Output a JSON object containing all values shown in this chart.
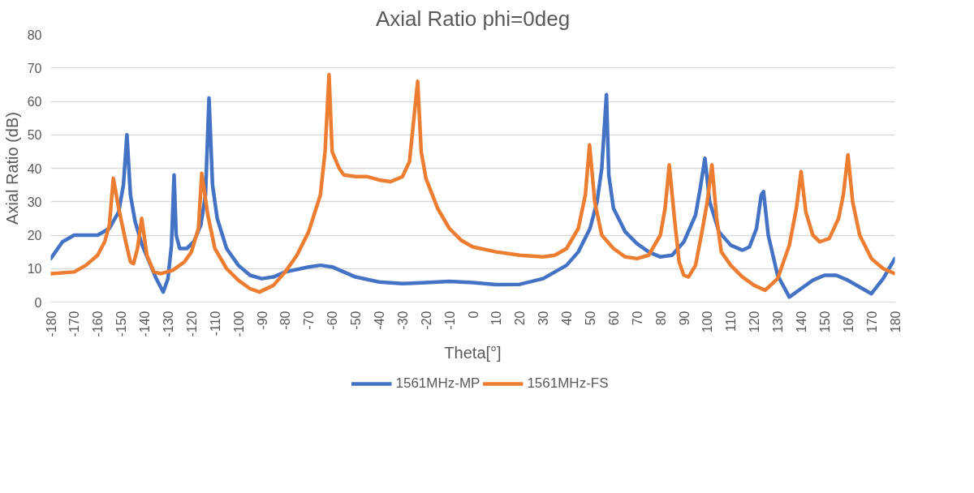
{
  "chart_data": {
    "type": "line",
    "title": "Axial Ratio phi=0deg",
    "xlabel": "Theta[°]",
    "ylabel": "Axial Ratio (dB)",
    "xlim": [
      -180,
      180
    ],
    "ylim": [
      0,
      80
    ],
    "xticks": [
      -180,
      -170,
      -160,
      -150,
      -140,
      -130,
      -120,
      -110,
      -100,
      -90,
      -80,
      -70,
      -60,
      -50,
      -40,
      -30,
      -20,
      -10,
      0,
      10,
      20,
      30,
      40,
      50,
      60,
      70,
      80,
      90,
      100,
      110,
      120,
      130,
      140,
      150,
      160,
      170,
      180
    ],
    "yticks": [
      0,
      10,
      20,
      30,
      40,
      50,
      60,
      70,
      80
    ],
    "grid": "y",
    "legend": "bottom",
    "marker": "none",
    "line_style": "solid",
    "series": [
      {
        "name": "1561MHz-MP",
        "color": "#4472c4",
        "x": [
          -180,
          -175,
          -170,
          -165,
          -160,
          -155,
          -151,
          -149,
          -147.5,
          -146,
          -144,
          -141,
          -138,
          -135,
          -132,
          -130,
          -128.5,
          -127.4,
          -126.5,
          -125,
          -122,
          -119,
          -116,
          -114,
          -112.5,
          -111,
          -109,
          -105,
          -100,
          -95,
          -90,
          -85,
          -80,
          -70,
          -65,
          -60,
          -55,
          -50,
          -40,
          -30,
          -20,
          -10,
          0,
          10,
          20,
          30,
          40,
          45,
          50,
          53,
          55,
          57,
          58,
          60,
          65,
          70,
          75,
          80,
          85,
          90,
          95,
          97,
          99,
          101,
          105,
          110,
          115,
          118,
          121,
          123,
          124,
          126,
          130,
          135,
          140,
          145,
          150,
          155,
          160,
          165,
          170,
          175,
          180
        ],
        "values": [
          13,
          18,
          20,
          20,
          20,
          22,
          27,
          35,
          50,
          32,
          24,
          17,
          12,
          7,
          3,
          7,
          17,
          38,
          20,
          16,
          16,
          18,
          23,
          32,
          61,
          35,
          25,
          16,
          11,
          8,
          7,
          7.5,
          9,
          10.5,
          11,
          10.5,
          9,
          7.5,
          6,
          5.5,
          5.8,
          6.2,
          5.8,
          5.2,
          5.3,
          7,
          11,
          15,
          22,
          30,
          40,
          62,
          38,
          28,
          21,
          17.5,
          15,
          13.5,
          14,
          18,
          26,
          34,
          43,
          30,
          21,
          17,
          15.5,
          16.5,
          22,
          32,
          33,
          20,
          8,
          1.5,
          4,
          6.5,
          8,
          8,
          6.5,
          4.5,
          2.5,
          7,
          13
        ]
      },
      {
        "name": "1561MHz-FS",
        "color": "#ed7d31",
        "x": [
          -180,
          -170,
          -165,
          -160,
          -157,
          -155,
          -153.3,
          -151,
          -148,
          -146,
          -144.7,
          -143,
          -141.2,
          -139,
          -136,
          -133,
          -128,
          -123,
          -120,
          -117,
          -115.6,
          -113,
          -110,
          -105,
          -100,
          -95,
          -91,
          -85,
          -80,
          -75,
          -70,
          -65,
          -63,
          -61.3,
          -60,
          -57,
          -55,
          -50,
          -45,
          -40,
          -35,
          -30,
          -27,
          -23.5,
          -22,
          -20,
          -15,
          -10,
          -5,
          0,
          10,
          20,
          30,
          35,
          40,
          45,
          48,
          49.8,
          52,
          55,
          60,
          65,
          70,
          75,
          80,
          82,
          83.8,
          86,
          88,
          90,
          92,
          95,
          98,
          100,
          102,
          104,
          106,
          110,
          115,
          120,
          124.6,
          130,
          135,
          138,
          140,
          142,
          145,
          148,
          152,
          156,
          158,
          160,
          162,
          165,
          170,
          175,
          180
        ],
        "values": [
          8.5,
          9,
          11,
          14,
          18,
          23,
          37,
          28,
          18,
          12,
          11.5,
          16,
          25,
          14,
          9,
          8.5,
          9.5,
          12,
          15,
          22,
          38.5,
          26,
          16,
          10,
          6.5,
          4,
          3,
          5,
          9,
          14,
          21,
          32,
          45,
          68,
          45,
          40,
          38,
          37.5,
          37.5,
          36.5,
          36,
          37.5,
          42,
          66,
          45,
          37,
          28,
          22,
          18.5,
          16.5,
          15,
          14,
          13.5,
          14,
          16,
          22,
          32,
          47,
          30,
          20,
          16,
          13.5,
          13,
          14,
          20,
          28,
          41,
          25,
          12,
          8,
          7.5,
          11,
          22,
          30,
          41,
          25,
          15,
          11,
          7.5,
          5,
          3.5,
          7,
          17,
          28,
          39,
          27,
          20,
          18,
          19,
          25,
          32,
          44,
          30,
          20,
          13,
          10,
          8.5
        ]
      }
    ]
  }
}
